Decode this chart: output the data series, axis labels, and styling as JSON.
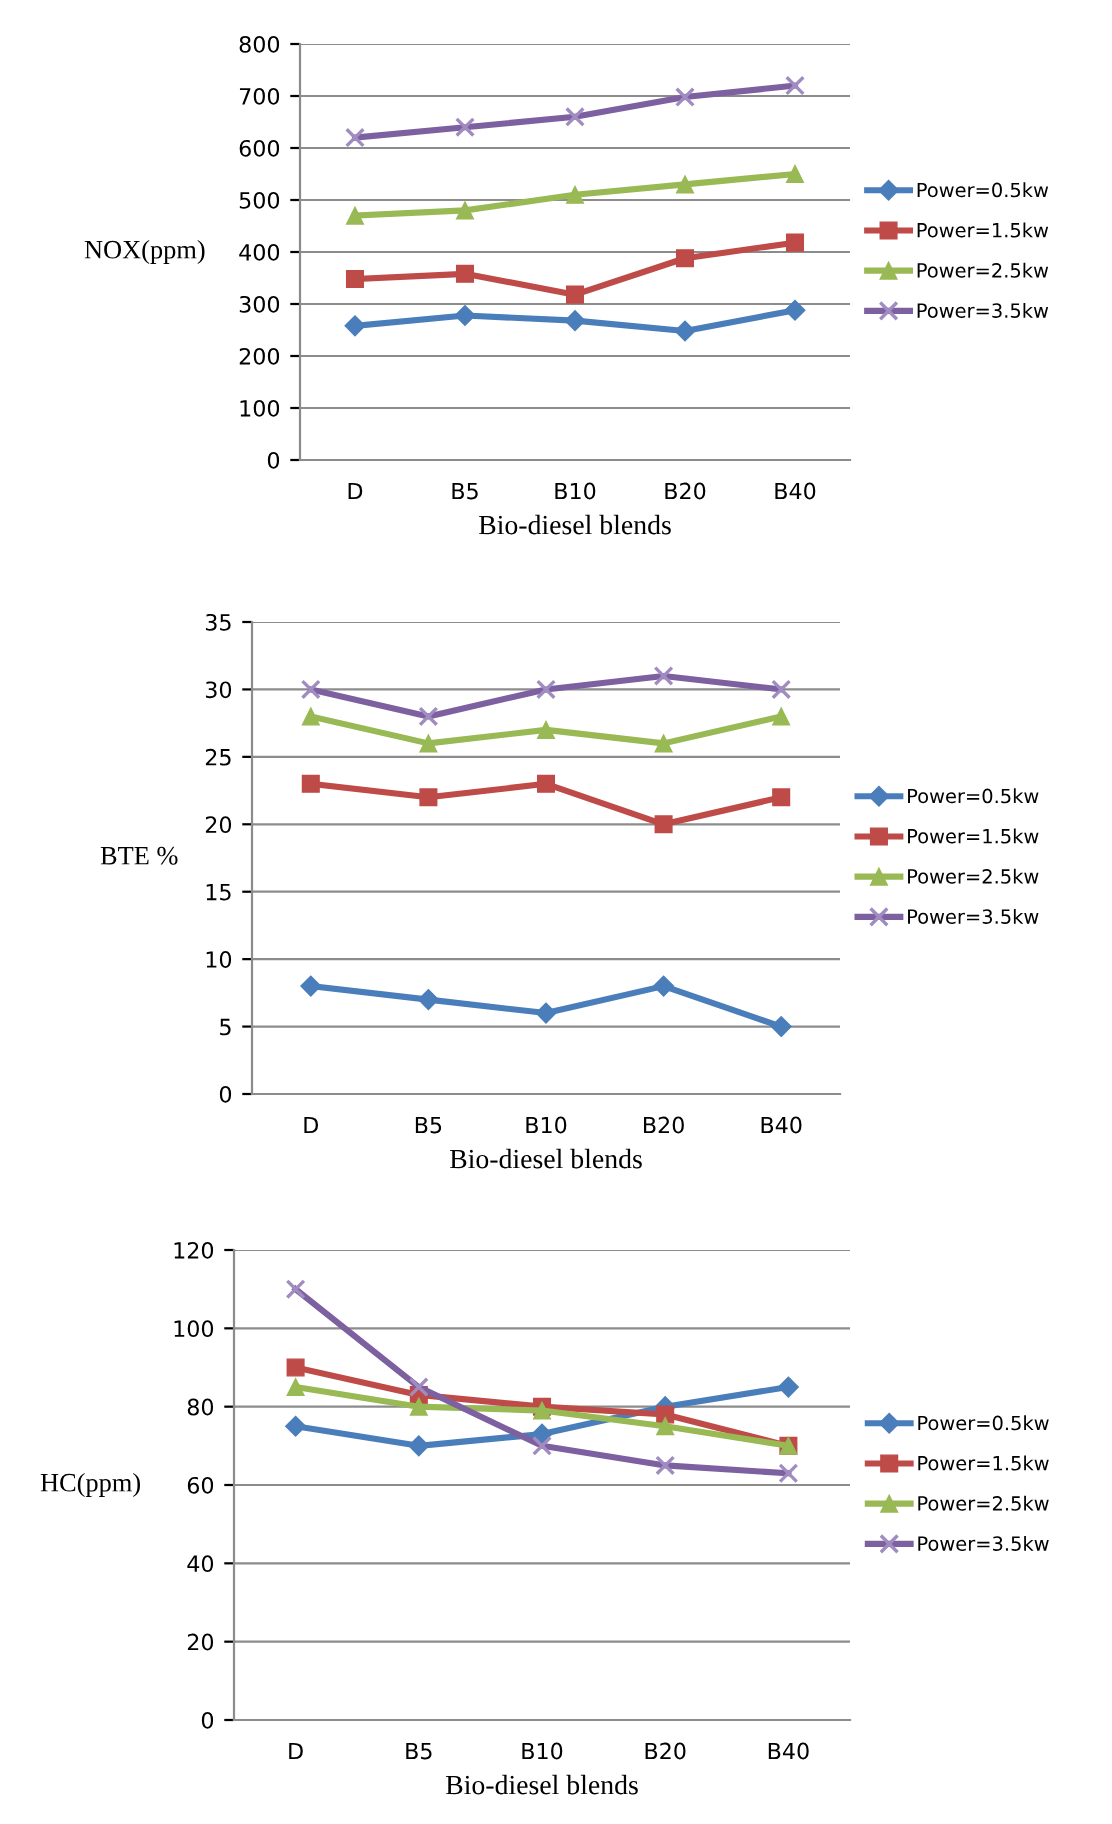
{
  "chart_data": [
    {
      "type": "line",
      "ylabel": "NOX(ppm)",
      "xlabel": "Bio-diesel blends",
      "categories": [
        "D",
        "B5",
        "B10",
        "B20",
        "B40"
      ],
      "ylim": [
        0,
        800
      ],
      "yticks": [
        0,
        100,
        200,
        300,
        400,
        500,
        600,
        700,
        800
      ],
      "grid": "y",
      "legend": "right",
      "series": [
        {
          "name": "Power=0.5kw",
          "color": "#4a7ebb",
          "marker": "diamond",
          "values": [
            258,
            278,
            268,
            248,
            288
          ]
        },
        {
          "name": "Power=1.5kw",
          "color": "#be4b48",
          "marker": "square",
          "values": [
            348,
            358,
            318,
            388,
            418
          ]
        },
        {
          "name": "Power=2.5kw",
          "color": "#98b954",
          "marker": "triangle",
          "values": [
            470,
            480,
            510,
            530,
            550
          ]
        },
        {
          "name": "Power=3.5kw",
          "color": "#7d60a0",
          "marker": "cross",
          "values": [
            620,
            640,
            660,
            698,
            720
          ]
        }
      ]
    },
    {
      "type": "line",
      "ylabel": "BTE %",
      "xlabel": "Bio-diesel blends",
      "categories": [
        "D",
        "B5",
        "B10",
        "B20",
        "B40"
      ],
      "ylim": [
        0,
        35
      ],
      "yticks": [
        0,
        5,
        10,
        15,
        20,
        25,
        30,
        35
      ],
      "grid": "y",
      "legend": "right",
      "series": [
        {
          "name": "Power=0.5kw",
          "color": "#4a7ebb",
          "marker": "diamond",
          "values": [
            8,
            7,
            6,
            8,
            5
          ]
        },
        {
          "name": "Power=1.5kw",
          "color": "#be4b48",
          "marker": "square",
          "values": [
            23,
            22,
            23,
            20,
            22
          ]
        },
        {
          "name": "Power=2.5kw",
          "color": "#98b954",
          "marker": "triangle",
          "values": [
            28,
            26,
            27,
            26,
            28
          ]
        },
        {
          "name": "Power=3.5kw",
          "color": "#7d60a0",
          "marker": "cross",
          "values": [
            30,
            28,
            30,
            31,
            30
          ]
        }
      ]
    },
    {
      "type": "line",
      "ylabel": "HC(ppm)",
      "xlabel": "Bio-diesel blends",
      "categories": [
        "D",
        "B5",
        "B10",
        "B20",
        "B40"
      ],
      "ylim": [
        0,
        120
      ],
      "yticks": [
        0,
        20,
        40,
        60,
        80,
        100,
        120
      ],
      "grid": "y",
      "legend": "right",
      "series": [
        {
          "name": "Power=0.5kw",
          "color": "#4a7ebb",
          "marker": "diamond",
          "values": [
            75,
            70,
            73,
            80,
            85
          ]
        },
        {
          "name": "Power=1.5kw",
          "color": "#be4b48",
          "marker": "square",
          "values": [
            90,
            83,
            80,
            78,
            70
          ]
        },
        {
          "name": "Power=2.5kw",
          "color": "#98b954",
          "marker": "triangle",
          "values": [
            85,
            80,
            79,
            75,
            70
          ]
        },
        {
          "name": "Power=3.5kw",
          "color": "#7d60a0",
          "marker": "cross",
          "values": [
            110,
            85,
            70,
            65,
            63
          ]
        }
      ]
    }
  ]
}
